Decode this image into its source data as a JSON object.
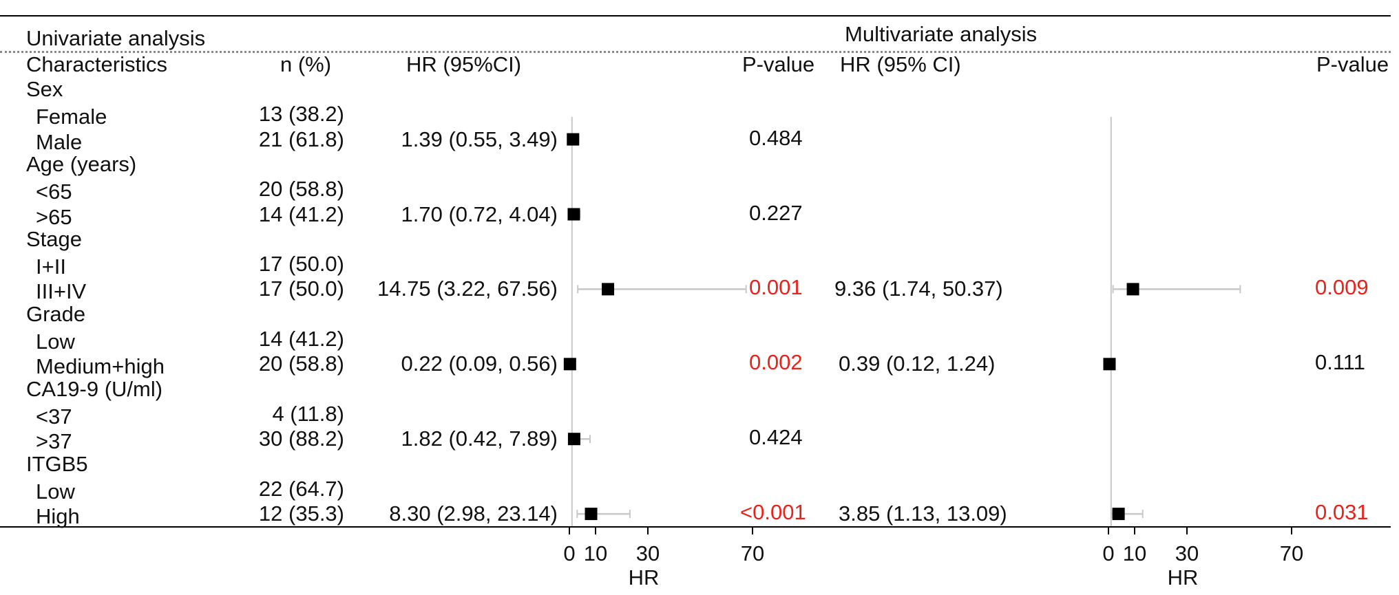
{
  "header": {
    "univariate": "Univariate analysis",
    "multivariate": "Multivariate analysis"
  },
  "columns": {
    "characteristics": "Characteristics",
    "n": "n (%)",
    "uni_hr": "HR (95%CI)",
    "uni_p": "P-value",
    "multi_hr": "HR (95% CI)",
    "multi_p": "P-value"
  },
  "rows": [
    {
      "label": "Sex",
      "group": true
    },
    {
      "label": "Female",
      "n": "13 (38.2)"
    },
    {
      "label": "Male",
      "n": "21 (61.8)",
      "uni_hr": "1.39 (0.55, 3.49)",
      "uni_p": "0.484",
      "uni_p_sig": false
    },
    {
      "label": "Age (years)",
      "group": true
    },
    {
      "label": "<65",
      "n": "20 (58.8)"
    },
    {
      "label": ">65",
      "n": "14 (41.2)",
      "uni_hr": "1.70 (0.72, 4.04)",
      "uni_p": "0.227",
      "uni_p_sig": false
    },
    {
      "label": "Stage",
      "group": true
    },
    {
      "label": "I+II",
      "n": "17 (50.0)"
    },
    {
      "label": "III+IV",
      "n": "17 (50.0)",
      "uni_hr": "14.75 (3.22, 67.56)",
      "uni_p": "0.001",
      "uni_p_sig": true,
      "multi_hr": "9.36 (1.74, 50.37)",
      "multi_p": "0.009",
      "multi_p_sig": true
    },
    {
      "label": "Grade",
      "group": true
    },
    {
      "label": "Low",
      "n": "14 (41.2)"
    },
    {
      "label": "Medium+high",
      "n": "20 (58.8)",
      "uni_hr": "0.22 (0.09, 0.56)",
      "uni_p": "0.002",
      "uni_p_sig": true,
      "multi_hr": "0.39 (0.12, 1.24)",
      "multi_p": "0.111",
      "multi_p_sig": false
    },
    {
      "label": "CA19-9 (U/ml)",
      "group": true
    },
    {
      "label": "<37",
      "n": "4 (11.8)"
    },
    {
      "label": ">37",
      "n": "30 (88.2)",
      "uni_hr": "1.82 (0.42, 7.89)",
      "uni_p": "0.424",
      "uni_p_sig": false
    },
    {
      "label": "ITGB5",
      "group": true
    },
    {
      "label": "Low",
      "n": "22 (64.7)"
    },
    {
      "label": "High",
      "n": "12 (35.3)",
      "uni_hr": "8.30 (2.98, 23.14)",
      "uni_p": "<0.001",
      "uni_p_sig": true,
      "multi_hr": "3.85 (1.13, 13.09)",
      "multi_p": "0.031",
      "multi_p_sig": true
    }
  ],
  "colors": {
    "significant": "#e8231c",
    "text": "#111111",
    "marker": "#000000",
    "ci_line": "#c8c8c8"
  },
  "chart_data": [
    {
      "type": "forest",
      "panel": "univariate",
      "xlabel": "HR",
      "xticks": [
        0,
        10,
        30,
        70
      ],
      "xlim": [
        0,
        70
      ],
      "reference_line": 1,
      "series": [
        {
          "points": [
            {
              "row": 2,
              "hr": 1.39,
              "lo": 0.55,
              "hi": 3.49
            },
            {
              "row": 5,
              "hr": 1.7,
              "lo": 0.72,
              "hi": 4.04
            },
            {
              "row": 8,
              "hr": 14.75,
              "lo": 3.22,
              "hi": 67.56
            },
            {
              "row": 11,
              "hr": 0.22,
              "lo": 0.09,
              "hi": 0.56
            },
            {
              "row": 14,
              "hr": 1.82,
              "lo": 0.42,
              "hi": 7.89
            },
            {
              "row": 17,
              "hr": 8.3,
              "lo": 2.98,
              "hi": 23.14
            }
          ]
        }
      ]
    },
    {
      "type": "forest",
      "panel": "multivariate",
      "xlabel": "HR",
      "xticks": [
        0,
        10,
        30,
        70
      ],
      "xlim": [
        0,
        70
      ],
      "reference_line": 1,
      "series": [
        {
          "points": [
            {
              "row": 8,
              "hr": 9.36,
              "lo": 1.74,
              "hi": 50.37
            },
            {
              "row": 11,
              "hr": 0.39,
              "lo": 0.12,
              "hi": 1.24
            },
            {
              "row": 17,
              "hr": 3.85,
              "lo": 1.13,
              "hi": 13.09
            }
          ]
        }
      ]
    }
  ]
}
